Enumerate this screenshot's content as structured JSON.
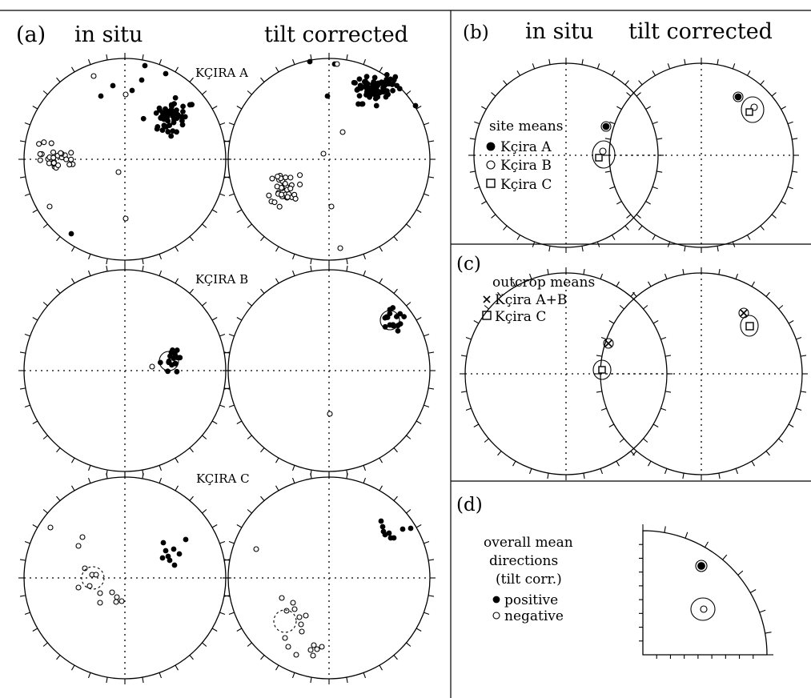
{
  "panels": {
    "a": {
      "label": "(a)",
      "col_left": "in situ",
      "col_right": "tilt corrected",
      "sites": [
        "KÇIRA A",
        "KÇIRA B",
        "KÇIRA C"
      ]
    },
    "b": {
      "label": "(b)",
      "col_left": "in situ",
      "col_right": "tilt corrected",
      "legend_title": "site means",
      "legend": [
        {
          "symbol": "filled-circle",
          "text": "Kçira A"
        },
        {
          "symbol": "open-circle",
          "text": "Kçira B"
        },
        {
          "symbol": "open-square",
          "text": "Kçira C"
        }
      ]
    },
    "c": {
      "label": "(c)",
      "legend_title": "outcrop means",
      "legend": [
        {
          "symbol": "cross",
          "text": "Kçira A+B"
        },
        {
          "symbol": "open-square",
          "text": "Kçira C"
        }
      ]
    },
    "d": {
      "label": "(d)",
      "legend_lines": [
        "overall mean",
        "directions",
        "(tilt corr.)"
      ],
      "legend": [
        {
          "symbol": "filled-circle",
          "text": "positive"
        },
        {
          "symbol": "open-circle",
          "text": "negative"
        }
      ]
    }
  }
}
